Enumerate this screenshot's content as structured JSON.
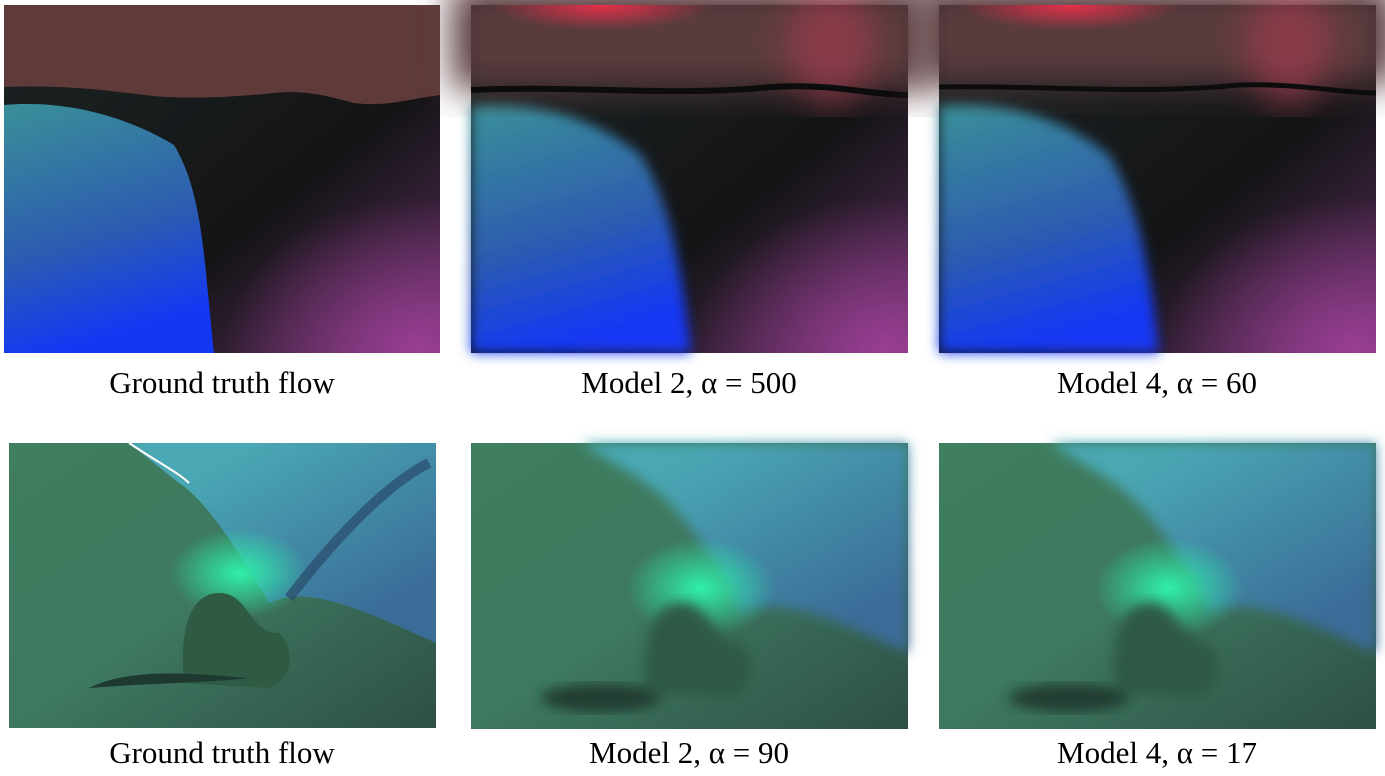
{
  "panels": [
    {
      "caption": "Ground truth flow"
    },
    {
      "caption": "Model 2, α = 500"
    },
    {
      "caption": "Model 4, α = 60"
    },
    {
      "caption": "Ground truth flow"
    },
    {
      "caption": "Model 2, α = 90"
    },
    {
      "caption": "Model 4, α = 17"
    }
  ]
}
